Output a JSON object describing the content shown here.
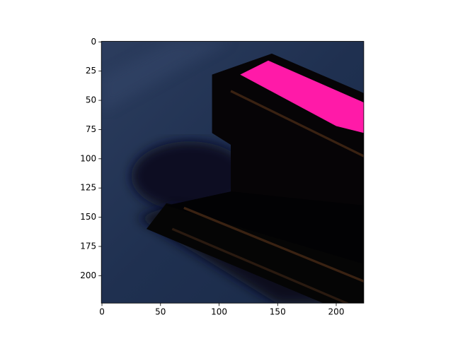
{
  "chart_data": {
    "type": "image",
    "xlim": [
      -0.5,
      223.5
    ],
    "ylim": [
      223.5,
      -0.5
    ],
    "xticks": [
      0,
      50,
      100,
      150,
      200
    ],
    "yticks": [
      0,
      25,
      50,
      75,
      100,
      125,
      150,
      175,
      200
    ]
  }
}
